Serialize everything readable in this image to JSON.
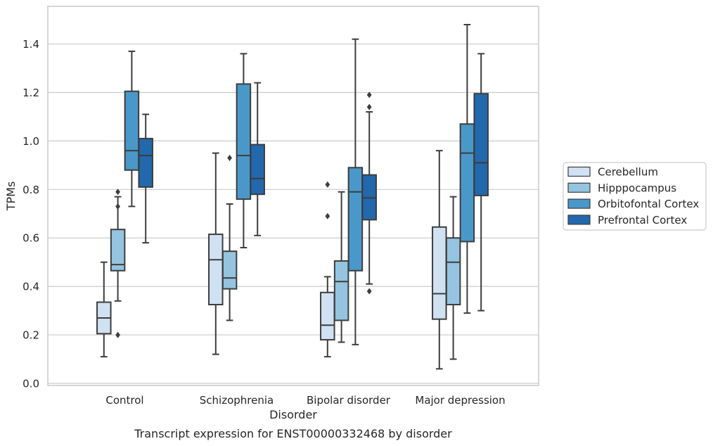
{
  "chart_data": {
    "type": "box",
    "title": "",
    "caption": "Transcript expression for ENST00000332468 by disorder",
    "xlabel": "Disorder",
    "ylabel": "TPMs",
    "ylim": [
      0.0,
      1.55
    ],
    "yticks": [
      "0.0",
      "0.2",
      "0.4",
      "0.6",
      "0.8",
      "1.0",
      "1.2",
      "1.4"
    ],
    "grid": "horizontal",
    "legend_position": "right",
    "categories": [
      "Control",
      "Schizophrenia",
      "Bipolar disorder",
      "Major depression"
    ],
    "series": [
      {
        "name": "Cerebellum",
        "color": "#d0e1f2",
        "boxes": [
          {
            "whislo": 0.11,
            "q1": 0.205,
            "med": 0.27,
            "q3": 0.335,
            "whishi": 0.5,
            "fliers": []
          },
          {
            "whislo": 0.12,
            "q1": 0.325,
            "med": 0.51,
            "q3": 0.615,
            "whishi": 0.95,
            "fliers": []
          },
          {
            "whislo": 0.11,
            "q1": 0.18,
            "med": 0.24,
            "q3": 0.375,
            "whishi": 0.44,
            "fliers": [
              0.69,
              0.82
            ]
          },
          {
            "whislo": 0.06,
            "q1": 0.265,
            "med": 0.37,
            "q3": 0.645,
            "whishi": 0.96,
            "fliers": []
          }
        ]
      },
      {
        "name": "Hipppocampus",
        "color": "#94c4df",
        "boxes": [
          {
            "whislo": 0.34,
            "q1": 0.465,
            "med": 0.49,
            "q3": 0.635,
            "whishi": 0.77,
            "fliers": [
              0.2,
              0.73,
              0.79
            ]
          },
          {
            "whislo": 0.26,
            "q1": 0.39,
            "med": 0.435,
            "q3": 0.545,
            "whishi": 0.74,
            "fliers": [
              0.93
            ]
          },
          {
            "whislo": 0.17,
            "q1": 0.26,
            "med": 0.42,
            "q3": 0.505,
            "whishi": 0.79,
            "fliers": []
          },
          {
            "whislo": 0.1,
            "q1": 0.325,
            "med": 0.5,
            "q3": 0.6,
            "whishi": 0.77,
            "fliers": []
          }
        ]
      },
      {
        "name": "Orbitofontal Cortex",
        "color": "#4a98c9",
        "boxes": [
          {
            "whislo": 0.73,
            "q1": 0.88,
            "med": 0.96,
            "q3": 1.205,
            "whishi": 1.37,
            "fliers": []
          },
          {
            "whislo": 0.56,
            "q1": 0.76,
            "med": 0.94,
            "q3": 1.235,
            "whishi": 1.36,
            "fliers": []
          },
          {
            "whislo": 0.16,
            "q1": 0.465,
            "med": 0.79,
            "q3": 0.89,
            "whishi": 1.42,
            "fliers": []
          },
          {
            "whislo": 0.29,
            "q1": 0.585,
            "med": 0.95,
            "q3": 1.07,
            "whishi": 1.48,
            "fliers": []
          }
        ]
      },
      {
        "name": "Prefrontal Cortex",
        "color": "#2268ad",
        "boxes": [
          {
            "whislo": 0.58,
            "q1": 0.81,
            "med": 0.94,
            "q3": 1.01,
            "whishi": 1.11,
            "fliers": []
          },
          {
            "whislo": 0.61,
            "q1": 0.78,
            "med": 0.845,
            "q3": 0.985,
            "whishi": 1.24,
            "fliers": []
          },
          {
            "whislo": 0.41,
            "q1": 0.675,
            "med": 0.765,
            "q3": 0.86,
            "whishi": 1.12,
            "fliers": [
              0.38,
              1.14,
              1.19
            ]
          },
          {
            "whislo": 0.3,
            "q1": 0.775,
            "med": 0.91,
            "q3": 1.195,
            "whishi": 1.36,
            "fliers": []
          }
        ]
      }
    ]
  }
}
